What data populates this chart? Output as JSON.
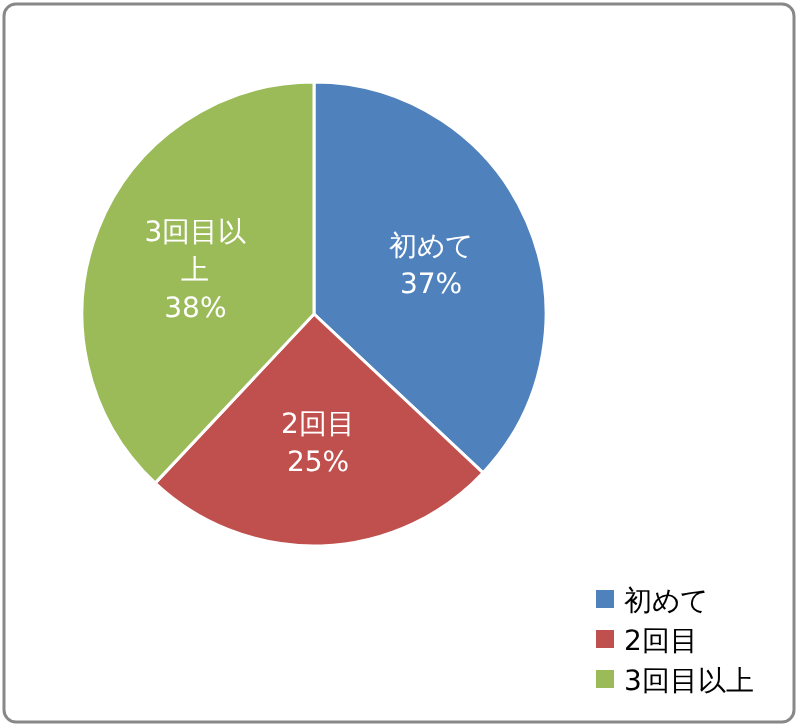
{
  "chart_data": {
    "type": "pie",
    "categories": [
      "初めて",
      "2回目",
      "3回目以上"
    ],
    "values": [
      37,
      25,
      38
    ],
    "colors": [
      "#4f81bd",
      "#c0504d",
      "#9bbb59"
    ],
    "value_labels": [
      "37%",
      "25%",
      "38%"
    ],
    "legend": "bottom right"
  }
}
